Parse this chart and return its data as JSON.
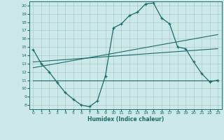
{
  "xlabel": "Humidex (Indice chaleur)",
  "xlim": [
    -0.5,
    23.5
  ],
  "ylim": [
    7.5,
    20.5
  ],
  "yticks": [
    8,
    9,
    10,
    11,
    12,
    13,
    14,
    15,
    16,
    17,
    18,
    19,
    20
  ],
  "xticks": [
    0,
    1,
    2,
    3,
    4,
    5,
    6,
    7,
    8,
    9,
    10,
    11,
    12,
    13,
    14,
    15,
    16,
    17,
    18,
    19,
    20,
    21,
    22,
    23
  ],
  "bg_color": "#cde8e8",
  "line_color": "#1a6b6b",
  "grid_color": "#aacccc",
  "line1_x": [
    0,
    1,
    2,
    3,
    4,
    5,
    6,
    7,
    8,
    9,
    10,
    11,
    12,
    13,
    14,
    15,
    16,
    17,
    18,
    19,
    20,
    21,
    22,
    23
  ],
  "line1_y": [
    14.7,
    13.0,
    12.0,
    10.7,
    9.5,
    8.7,
    8.0,
    7.8,
    8.5,
    11.5,
    17.3,
    17.8,
    18.8,
    19.2,
    20.2,
    20.3,
    18.5,
    17.8,
    15.0,
    14.8,
    13.2,
    11.8,
    10.8,
    11.0
  ],
  "line2_x": [
    0,
    23
  ],
  "line2_y": [
    12.5,
    16.5
  ],
  "line3_x": [
    0,
    23
  ],
  "line3_y": [
    13.2,
    14.8
  ],
  "line4_x": [
    0,
    23
  ],
  "line4_y": [
    11.0,
    11.0
  ]
}
